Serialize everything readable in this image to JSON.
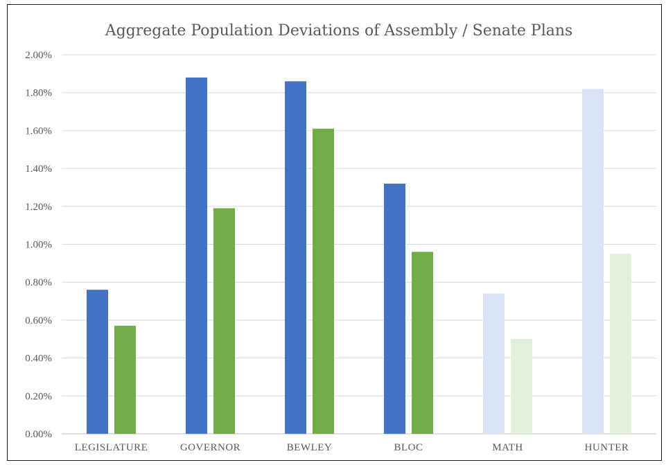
{
  "chart_data": {
    "type": "bar",
    "title": "Aggregate Population Deviations of Assembly / Senate Plans",
    "xlabel": "",
    "ylabel": "",
    "categories": [
      "LEGISLATURE",
      "GOVERNOR",
      "BEWLEY",
      "BLOC",
      "MATH",
      "HUNTER"
    ],
    "series": [
      {
        "values": [
          0.76,
          1.88,
          1.86,
          1.32,
          0.74,
          1.82
        ],
        "color": "#4472c4",
        "faded_color": "#dae3f3"
      },
      {
        "values": [
          0.57,
          1.19,
          1.61,
          0.96,
          0.5,
          0.95
        ],
        "color": "#70ad47",
        "faded_color": "#e2efda"
      }
    ],
    "faded_categories": [
      "MATH",
      "HUNTER"
    ],
    "ylim": [
      0,
      2.0
    ],
    "yticks": [
      0,
      0.2,
      0.4,
      0.6,
      0.8,
      1.0,
      1.2,
      1.4,
      1.6,
      1.8,
      2.0
    ],
    "ytick_labels": [
      "0.00%",
      "0.20%",
      "0.40%",
      "0.60%",
      "0.80%",
      "1.00%",
      "1.20%",
      "1.40%",
      "1.60%",
      "1.80%",
      "2.00%"
    ],
    "grid": true,
    "legend": "none"
  }
}
